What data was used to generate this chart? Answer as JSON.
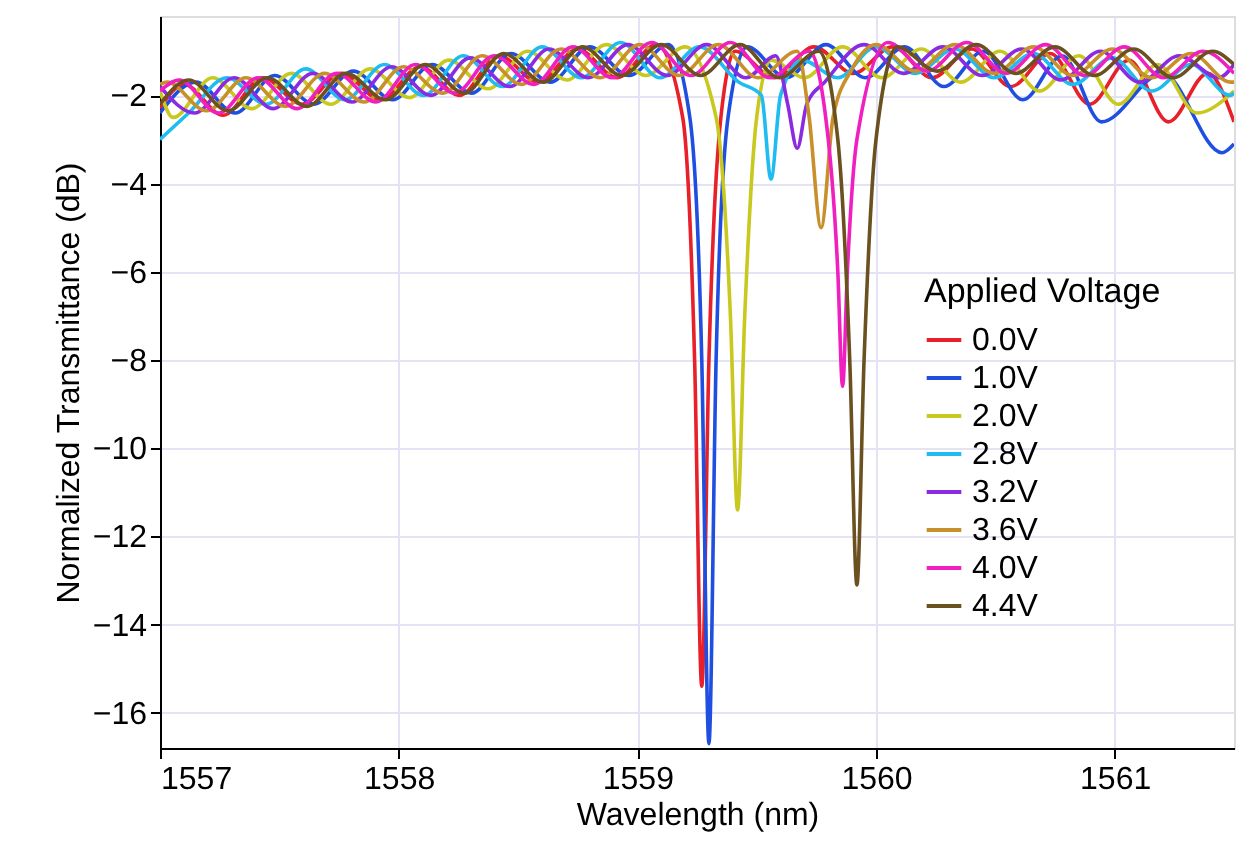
{
  "chart_data": {
    "type": "line",
    "xlabel": "Wavelength (nm)",
    "ylabel": "Normalized Transmittance (dB)",
    "legend_title": "Applied Voltage",
    "xlim": [
      1557,
      1561.5
    ],
    "xticks": [
      1557,
      1558,
      1559,
      1560,
      1561
    ],
    "ylim": [
      -16.8,
      -0.2
    ],
    "yticks": [
      -16,
      -14,
      -12,
      -10,
      -8,
      -6,
      -4,
      -2
    ],
    "grid": true,
    "legend": "right",
    "marker": "none",
    "line_style": "solid",
    "series": [
      {
        "name": "0.0V",
        "color": "#e8202a",
        "x": [
          1557.0,
          1557.1,
          1557.265,
          1557.43,
          1557.595,
          1557.76,
          1557.925,
          1558.09,
          1558.255,
          1558.42,
          1558.585,
          1558.75,
          1558.915,
          1559.08,
          1559.19,
          1559.24,
          1559.27,
          1559.3,
          1559.35,
          1559.41,
          1559.575,
          1559.74,
          1559.905,
          1560.07,
          1560.235,
          1560.4,
          1560.565,
          1560.73,
          1560.895,
          1561.06,
          1561.225,
          1561.39,
          1561.5
        ],
        "values": [
          -2.3,
          -1.75,
          -2.45,
          -1.6,
          -2.2,
          -1.5,
          -2.1,
          -1.35,
          -2.0,
          -1.1,
          -1.7,
          -0.95,
          -1.6,
          -0.85,
          -2.5,
          -8,
          -15.4,
          -8,
          -2.5,
          -1.0,
          -1.6,
          -0.9,
          -1.5,
          -0.9,
          -1.6,
          -0.95,
          -1.8,
          -1.05,
          -2.2,
          -1.2,
          -2.6,
          -1.5,
          -2.6
        ]
      },
      {
        "name": "1.0V",
        "color": "#1f4fe0",
        "x": [
          1557.0,
          1557.15,
          1557.315,
          1557.48,
          1557.645,
          1557.81,
          1557.975,
          1558.14,
          1558.305,
          1558.47,
          1558.635,
          1558.8,
          1558.965,
          1559.13,
          1559.22,
          1559.27,
          1559.3,
          1559.33,
          1559.38,
          1559.46,
          1559.625,
          1559.79,
          1559.955,
          1560.12,
          1560.285,
          1560.45,
          1560.615,
          1560.78,
          1560.945,
          1561.2,
          1561.45,
          1561.5
        ],
        "values": [
          -2.4,
          -1.7,
          -2.4,
          -1.55,
          -2.2,
          -1.45,
          -2.1,
          -1.3,
          -1.95,
          -1.05,
          -1.7,
          -0.9,
          -1.55,
          -0.85,
          -2.5,
          -8,
          -16.7,
          -8,
          -2.5,
          -0.9,
          -1.6,
          -0.85,
          -1.6,
          -0.9,
          -1.8,
          -1.0,
          -2.1,
          -1.1,
          -2.6,
          -1.5,
          -3.3,
          -3.1
        ]
      },
      {
        "name": "2.0V",
        "color": "#c8c81e",
        "x": [
          1557.0,
          1557.055,
          1557.22,
          1557.385,
          1557.55,
          1557.715,
          1557.88,
          1558.045,
          1558.21,
          1558.375,
          1558.54,
          1558.705,
          1558.87,
          1559.035,
          1559.2,
          1559.33,
          1559.39,
          1559.42,
          1559.45,
          1559.5,
          1559.56,
          1559.7,
          1559.86,
          1560.025,
          1560.19,
          1560.355,
          1560.52,
          1560.685,
          1560.85,
          1561.015,
          1561.18,
          1561.345,
          1561.5
        ],
        "values": [
          -1.9,
          -2.5,
          -1.6,
          -2.3,
          -1.5,
          -2.2,
          -1.4,
          -2.05,
          -1.2,
          -1.85,
          -1.0,
          -1.65,
          -0.85,
          -1.55,
          -0.9,
          -2.5,
          -7,
          -11.4,
          -7,
          -2.5,
          -1.2,
          -1.6,
          -0.9,
          -1.6,
          -0.95,
          -1.7,
          -1.0,
          -1.9,
          -1.1,
          -2.2,
          -1.3,
          -2.4,
          -1.9
        ]
      },
      {
        "name": "2.8V",
        "color": "#1ebcf0",
        "x": [
          1557.0,
          1557.12,
          1557.28,
          1557.445,
          1557.61,
          1557.775,
          1557.94,
          1558.105,
          1558.27,
          1558.435,
          1558.6,
          1558.765,
          1558.93,
          1559.095,
          1559.26,
          1559.425,
          1559.52,
          1559.56,
          1559.6,
          1559.69,
          1559.84,
          1560.0,
          1560.165,
          1560.33,
          1560.495,
          1560.66,
          1560.825,
          1560.99,
          1561.155,
          1561.32,
          1561.485,
          1561.5
        ],
        "values": [
          -3.0,
          -2.4,
          -1.6,
          -2.2,
          -1.4,
          -2.1,
          -1.3,
          -2.0,
          -1.1,
          -1.8,
          -0.9,
          -1.6,
          -0.8,
          -1.6,
          -0.9,
          -1.7,
          -2.0,
          -3.9,
          -2.0,
          -1.2,
          -1.6,
          -0.9,
          -1.5,
          -0.95,
          -1.6,
          -1.05,
          -1.75,
          -1.15,
          -1.9,
          -1.3,
          -2.0,
          -1.95
        ]
      },
      {
        "name": "3.2V",
        "color": "#8a2be2",
        "x": [
          1557.0,
          1557.145,
          1557.31,
          1557.475,
          1557.64,
          1557.805,
          1557.97,
          1558.135,
          1558.3,
          1558.465,
          1558.63,
          1558.795,
          1558.96,
          1559.125,
          1559.29,
          1559.455,
          1559.58,
          1559.63,
          1559.67,
          1559.71,
          1559.785,
          1559.95,
          1560.115,
          1560.28,
          1560.445,
          1560.61,
          1560.775,
          1560.94,
          1561.105,
          1561.27,
          1561.435,
          1561.5
        ],
        "values": [
          -1.8,
          -2.4,
          -1.6,
          -2.3,
          -1.5,
          -2.15,
          -1.35,
          -2.0,
          -1.15,
          -1.8,
          -0.95,
          -1.6,
          -0.85,
          -1.55,
          -0.85,
          -1.6,
          -1.1,
          -2.2,
          -3.2,
          -2.2,
          -1.7,
          -0.85,
          -1.5,
          -0.9,
          -1.55,
          -0.95,
          -1.65,
          -1.0,
          -1.7,
          -1.1,
          -1.6,
          -1.3
        ]
      },
      {
        "name": "3.6V",
        "color": "#c8902a",
        "x": [
          1557.0,
          1557.03,
          1557.195,
          1557.36,
          1557.525,
          1557.69,
          1557.855,
          1558.02,
          1558.185,
          1558.35,
          1558.515,
          1558.68,
          1558.845,
          1559.01,
          1559.175,
          1559.34,
          1559.505,
          1559.67,
          1559.72,
          1559.77,
          1559.82,
          1559.9,
          1560.0,
          1560.165,
          1560.33,
          1560.495,
          1560.66,
          1560.825,
          1560.99,
          1561.155,
          1561.32,
          1561.485,
          1561.5
        ],
        "values": [
          -1.75,
          -1.7,
          -2.35,
          -1.6,
          -2.25,
          -1.5,
          -2.15,
          -1.35,
          -1.95,
          -1.1,
          -1.75,
          -0.95,
          -1.6,
          -0.85,
          -1.55,
          -0.85,
          -1.6,
          -1.0,
          -2.5,
          -5.0,
          -2.5,
          -1.4,
          -0.85,
          -1.45,
          -0.85,
          -1.5,
          -0.9,
          -1.55,
          -0.95,
          -1.6,
          -1.05,
          -1.7,
          -1.7
        ]
      },
      {
        "name": "4.0V",
        "color": "#f020c0",
        "x": [
          1557.0,
          1557.08,
          1557.245,
          1557.41,
          1557.575,
          1557.74,
          1557.905,
          1558.07,
          1558.235,
          1558.4,
          1558.565,
          1558.73,
          1558.895,
          1559.06,
          1559.225,
          1559.39,
          1559.555,
          1559.72,
          1559.8,
          1559.84,
          1559.86,
          1559.88,
          1559.92,
          1560.05,
          1560.215,
          1560.38,
          1560.545,
          1560.71,
          1560.875,
          1561.04,
          1561.205,
          1561.37,
          1561.5
        ],
        "values": [
          -1.9,
          -1.65,
          -2.4,
          -1.6,
          -2.3,
          -1.5,
          -2.15,
          -1.3,
          -1.95,
          -1.1,
          -1.75,
          -0.9,
          -1.6,
          -0.8,
          -1.55,
          -0.8,
          -1.6,
          -1.0,
          -3.0,
          -6,
          -8.6,
          -6,
          -3.0,
          -0.8,
          -1.45,
          -0.8,
          -1.5,
          -0.85,
          -1.55,
          -0.9,
          -1.6,
          -1.0,
          -1.5
        ]
      },
      {
        "name": "4.4V",
        "color": "#6b5020",
        "x": [
          1557.0,
          1557.12,
          1557.285,
          1557.45,
          1557.615,
          1557.78,
          1557.945,
          1558.11,
          1558.275,
          1558.44,
          1558.605,
          1558.77,
          1558.935,
          1559.1,
          1559.265,
          1559.43,
          1559.595,
          1559.76,
          1559.84,
          1559.89,
          1559.92,
          1559.95,
          1560.0,
          1560.09,
          1560.255,
          1560.42,
          1560.585,
          1560.75,
          1560.915,
          1561.08,
          1561.245,
          1561.41,
          1561.5
        ],
        "values": [
          -2.2,
          -1.65,
          -2.35,
          -1.6,
          -2.25,
          -1.5,
          -2.1,
          -1.3,
          -1.95,
          -1.05,
          -1.7,
          -0.9,
          -1.55,
          -0.85,
          -1.55,
          -0.85,
          -1.6,
          -1.0,
          -3.0,
          -8,
          -13.1,
          -8,
          -3.0,
          -0.9,
          -1.45,
          -0.85,
          -1.5,
          -0.9,
          -1.55,
          -0.95,
          -1.6,
          -1.0,
          -1.3
        ]
      }
    ]
  }
}
